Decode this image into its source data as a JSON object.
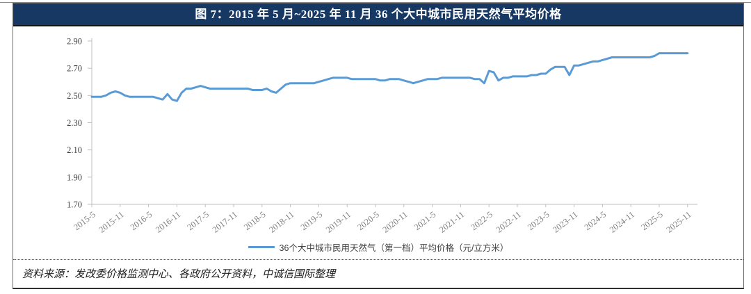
{
  "figure": {
    "title": "图 7：2015 年 5 月~2025 年 11 月 36 个大中城市民用天然气平均价格",
    "source_note": "资料来源：发改委价格监测中心、各政府公开资料，中诚信国际整理"
  },
  "colors": {
    "title_bar_bg": "#163862",
    "title_text": "#ffffff",
    "line": "#5B9BD5",
    "axis_line": "#BFBFBF",
    "y_label": "#404040",
    "x_label": "#7F7F7F"
  },
  "chart_data": {
    "type": "line",
    "title": "图 7：2015 年 5 月~2025 年 11 月 36 个大中城市民用天然气平均价格",
    "xlabel": "",
    "ylabel": "",
    "ylim": [
      1.7,
      2.9
    ],
    "y_ticks": [
      "2.90",
      "2.70",
      "2.50",
      "2.30",
      "2.10",
      "1.90",
      "1.70"
    ],
    "grid": false,
    "legend_position": "bottom",
    "x_unit": "month",
    "x_start": "2015-5",
    "x_end": "2025-11",
    "x_tick_interval_months": 6,
    "x_tick_labels": [
      "2015-5",
      "2015-11",
      "2016-5",
      "2016-11",
      "2017-5",
      "2017-11",
      "2018-5",
      "2018-11",
      "2019-5",
      "2019-11",
      "2020-5",
      "2020-11",
      "2021-5",
      "2021-11",
      "2022-5",
      "2022-11",
      "2023-5",
      "2023-11",
      "2024-5",
      "2024-11",
      "2025-5",
      "2025-11"
    ],
    "series": [
      {
        "name": "36个大中城市民用天然气（第一档）平均价格（元/立方米）",
        "values": [
          2.49,
          2.49,
          2.49,
          2.5,
          2.52,
          2.53,
          2.52,
          2.5,
          2.49,
          2.49,
          2.49,
          2.49,
          2.49,
          2.49,
          2.48,
          2.47,
          2.51,
          2.47,
          2.46,
          2.52,
          2.55,
          2.55,
          2.56,
          2.57,
          2.56,
          2.55,
          2.55,
          2.55,
          2.55,
          2.55,
          2.55,
          2.55,
          2.55,
          2.55,
          2.54,
          2.54,
          2.54,
          2.55,
          2.53,
          2.52,
          2.55,
          2.58,
          2.59,
          2.59,
          2.59,
          2.59,
          2.59,
          2.59,
          2.6,
          2.61,
          2.62,
          2.63,
          2.63,
          2.63,
          2.63,
          2.62,
          2.62,
          2.62,
          2.62,
          2.62,
          2.62,
          2.61,
          2.61,
          2.62,
          2.62,
          2.62,
          2.61,
          2.6,
          2.59,
          2.6,
          2.61,
          2.62,
          2.62,
          2.62,
          2.63,
          2.63,
          2.63,
          2.63,
          2.63,
          2.63,
          2.63,
          2.62,
          2.62,
          2.59,
          2.68,
          2.67,
          2.61,
          2.63,
          2.63,
          2.64,
          2.64,
          2.64,
          2.64,
          2.65,
          2.65,
          2.66,
          2.66,
          2.69,
          2.71,
          2.71,
          2.71,
          2.65,
          2.72,
          2.72,
          2.73,
          2.74,
          2.75,
          2.75,
          2.76,
          2.77,
          2.78,
          2.78,
          2.78,
          2.78,
          2.78,
          2.78,
          2.78,
          2.78,
          2.78,
          2.79,
          2.81,
          2.81,
          2.81,
          2.81,
          2.81,
          2.81,
          2.81
        ]
      }
    ]
  }
}
